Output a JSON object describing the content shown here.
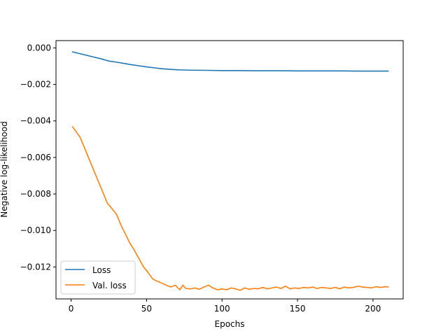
{
  "chart_data": {
    "type": "line",
    "xlabel": "Epochs",
    "ylabel": "Negative log-likelihood",
    "xlim": [
      -10,
      220
    ],
    "ylim": [
      -0.01375,
      0.0004
    ],
    "xticks": [
      0,
      50,
      100,
      150,
      200
    ],
    "xtick_labels": [
      "0",
      "50",
      "100",
      "150",
      "200"
    ],
    "yticks": [
      0.0,
      -0.002,
      -0.004,
      -0.006,
      -0.008,
      -0.01,
      -0.012
    ],
    "ytick_labels": [
      "0.000",
      "−0.002",
      "−0.004",
      "−0.006",
      "−0.008",
      "−0.010",
      "−0.012"
    ],
    "grid": false,
    "legend_position": "lower-left",
    "series": [
      {
        "name": "Loss",
        "color": "#1f77b4",
        "x": [
          1,
          5,
          10,
          15,
          20,
          25,
          30,
          35,
          40,
          45,
          50,
          55,
          60,
          65,
          70,
          75,
          80,
          90,
          100,
          110,
          120,
          130,
          140,
          150,
          160,
          170,
          180,
          190,
          200,
          210
        ],
        "y": [
          -0.00022,
          -0.0003,
          -0.0004,
          -0.0005,
          -0.0006,
          -0.00072,
          -0.00078,
          -0.00085,
          -0.00092,
          -0.00098,
          -0.00104,
          -0.00109,
          -0.00114,
          -0.00117,
          -0.0012,
          -0.00121,
          -0.00122,
          -0.00123,
          -0.00124,
          -0.00124,
          -0.00125,
          -0.00125,
          -0.00125,
          -0.00126,
          -0.00126,
          -0.00126,
          -0.00126,
          -0.00127,
          -0.00127,
          -0.00127
        ]
      },
      {
        "name": "Val. loss",
        "color": "#ff7f0e",
        "x": [
          1,
          3,
          6,
          9,
          12,
          15,
          18,
          21,
          24,
          27,
          30,
          33,
          36,
          39,
          42,
          45,
          48,
          51,
          54,
          57,
          60,
          63,
          66,
          69,
          72,
          74,
          76,
          79,
          82,
          85,
          88,
          91,
          94,
          97,
          100,
          103,
          106,
          109,
          112,
          115,
          118,
          121,
          124,
          127,
          130,
          133,
          136,
          139,
          142,
          145,
          148,
          151,
          154,
          157,
          160,
          163,
          166,
          169,
          172,
          175,
          178,
          181,
          184,
          187,
          190,
          193,
          196,
          199,
          202,
          205,
          208,
          210
        ],
        "y": [
          -0.00432,
          -0.00455,
          -0.0049,
          -0.0055,
          -0.0061,
          -0.0067,
          -0.0073,
          -0.0079,
          -0.0085,
          -0.0088,
          -0.0091,
          -0.0097,
          -0.0102,
          -0.0107,
          -0.0111,
          -0.01155,
          -0.012,
          -0.0123,
          -0.01265,
          -0.01278,
          -0.01288,
          -0.013,
          -0.0131,
          -0.013,
          -0.01325,
          -0.013,
          -0.01318,
          -0.0132,
          -0.01315,
          -0.01322,
          -0.0131,
          -0.013,
          -0.01315,
          -0.01325,
          -0.0132,
          -0.01325,
          -0.01315,
          -0.0132,
          -0.01328,
          -0.01315,
          -0.01322,
          -0.01318,
          -0.0132,
          -0.01312,
          -0.0132,
          -0.01315,
          -0.0131,
          -0.01318,
          -0.01305,
          -0.0132,
          -0.01315,
          -0.01318,
          -0.01312,
          -0.01315,
          -0.0131,
          -0.01318,
          -0.01312,
          -0.01315,
          -0.01318,
          -0.01312,
          -0.0132,
          -0.0131,
          -0.01315,
          -0.01312,
          -0.01305,
          -0.0131,
          -0.01312,
          -0.01315,
          -0.01308,
          -0.01312,
          -0.01308,
          -0.0131
        ]
      }
    ]
  }
}
